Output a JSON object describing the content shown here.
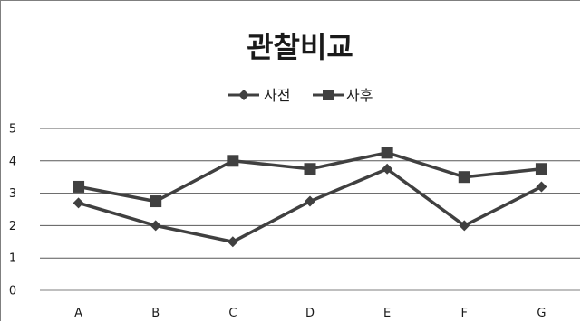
{
  "chart_data": {
    "type": "line",
    "title": "관찰비교",
    "xlabel": "",
    "ylabel": "",
    "categories": [
      "A",
      "B",
      "C",
      "D",
      "E",
      "F",
      "G"
    ],
    "series": [
      {
        "name": "사전",
        "values": [
          2.7,
          2.0,
          1.5,
          2.75,
          3.75,
          2.0,
          3.2
        ],
        "color": "#404040",
        "marker": "diamond"
      },
      {
        "name": "사후",
        "values": [
          3.2,
          2.75,
          4.0,
          3.75,
          4.25,
          3.5,
          3.75
        ],
        "color": "#404040",
        "marker": "square"
      }
    ],
    "ylim": [
      0,
      5
    ],
    "yticks": [
      "0",
      "1",
      "2",
      "3",
      "4",
      "5"
    ],
    "grid": true,
    "legend": "top-center"
  }
}
